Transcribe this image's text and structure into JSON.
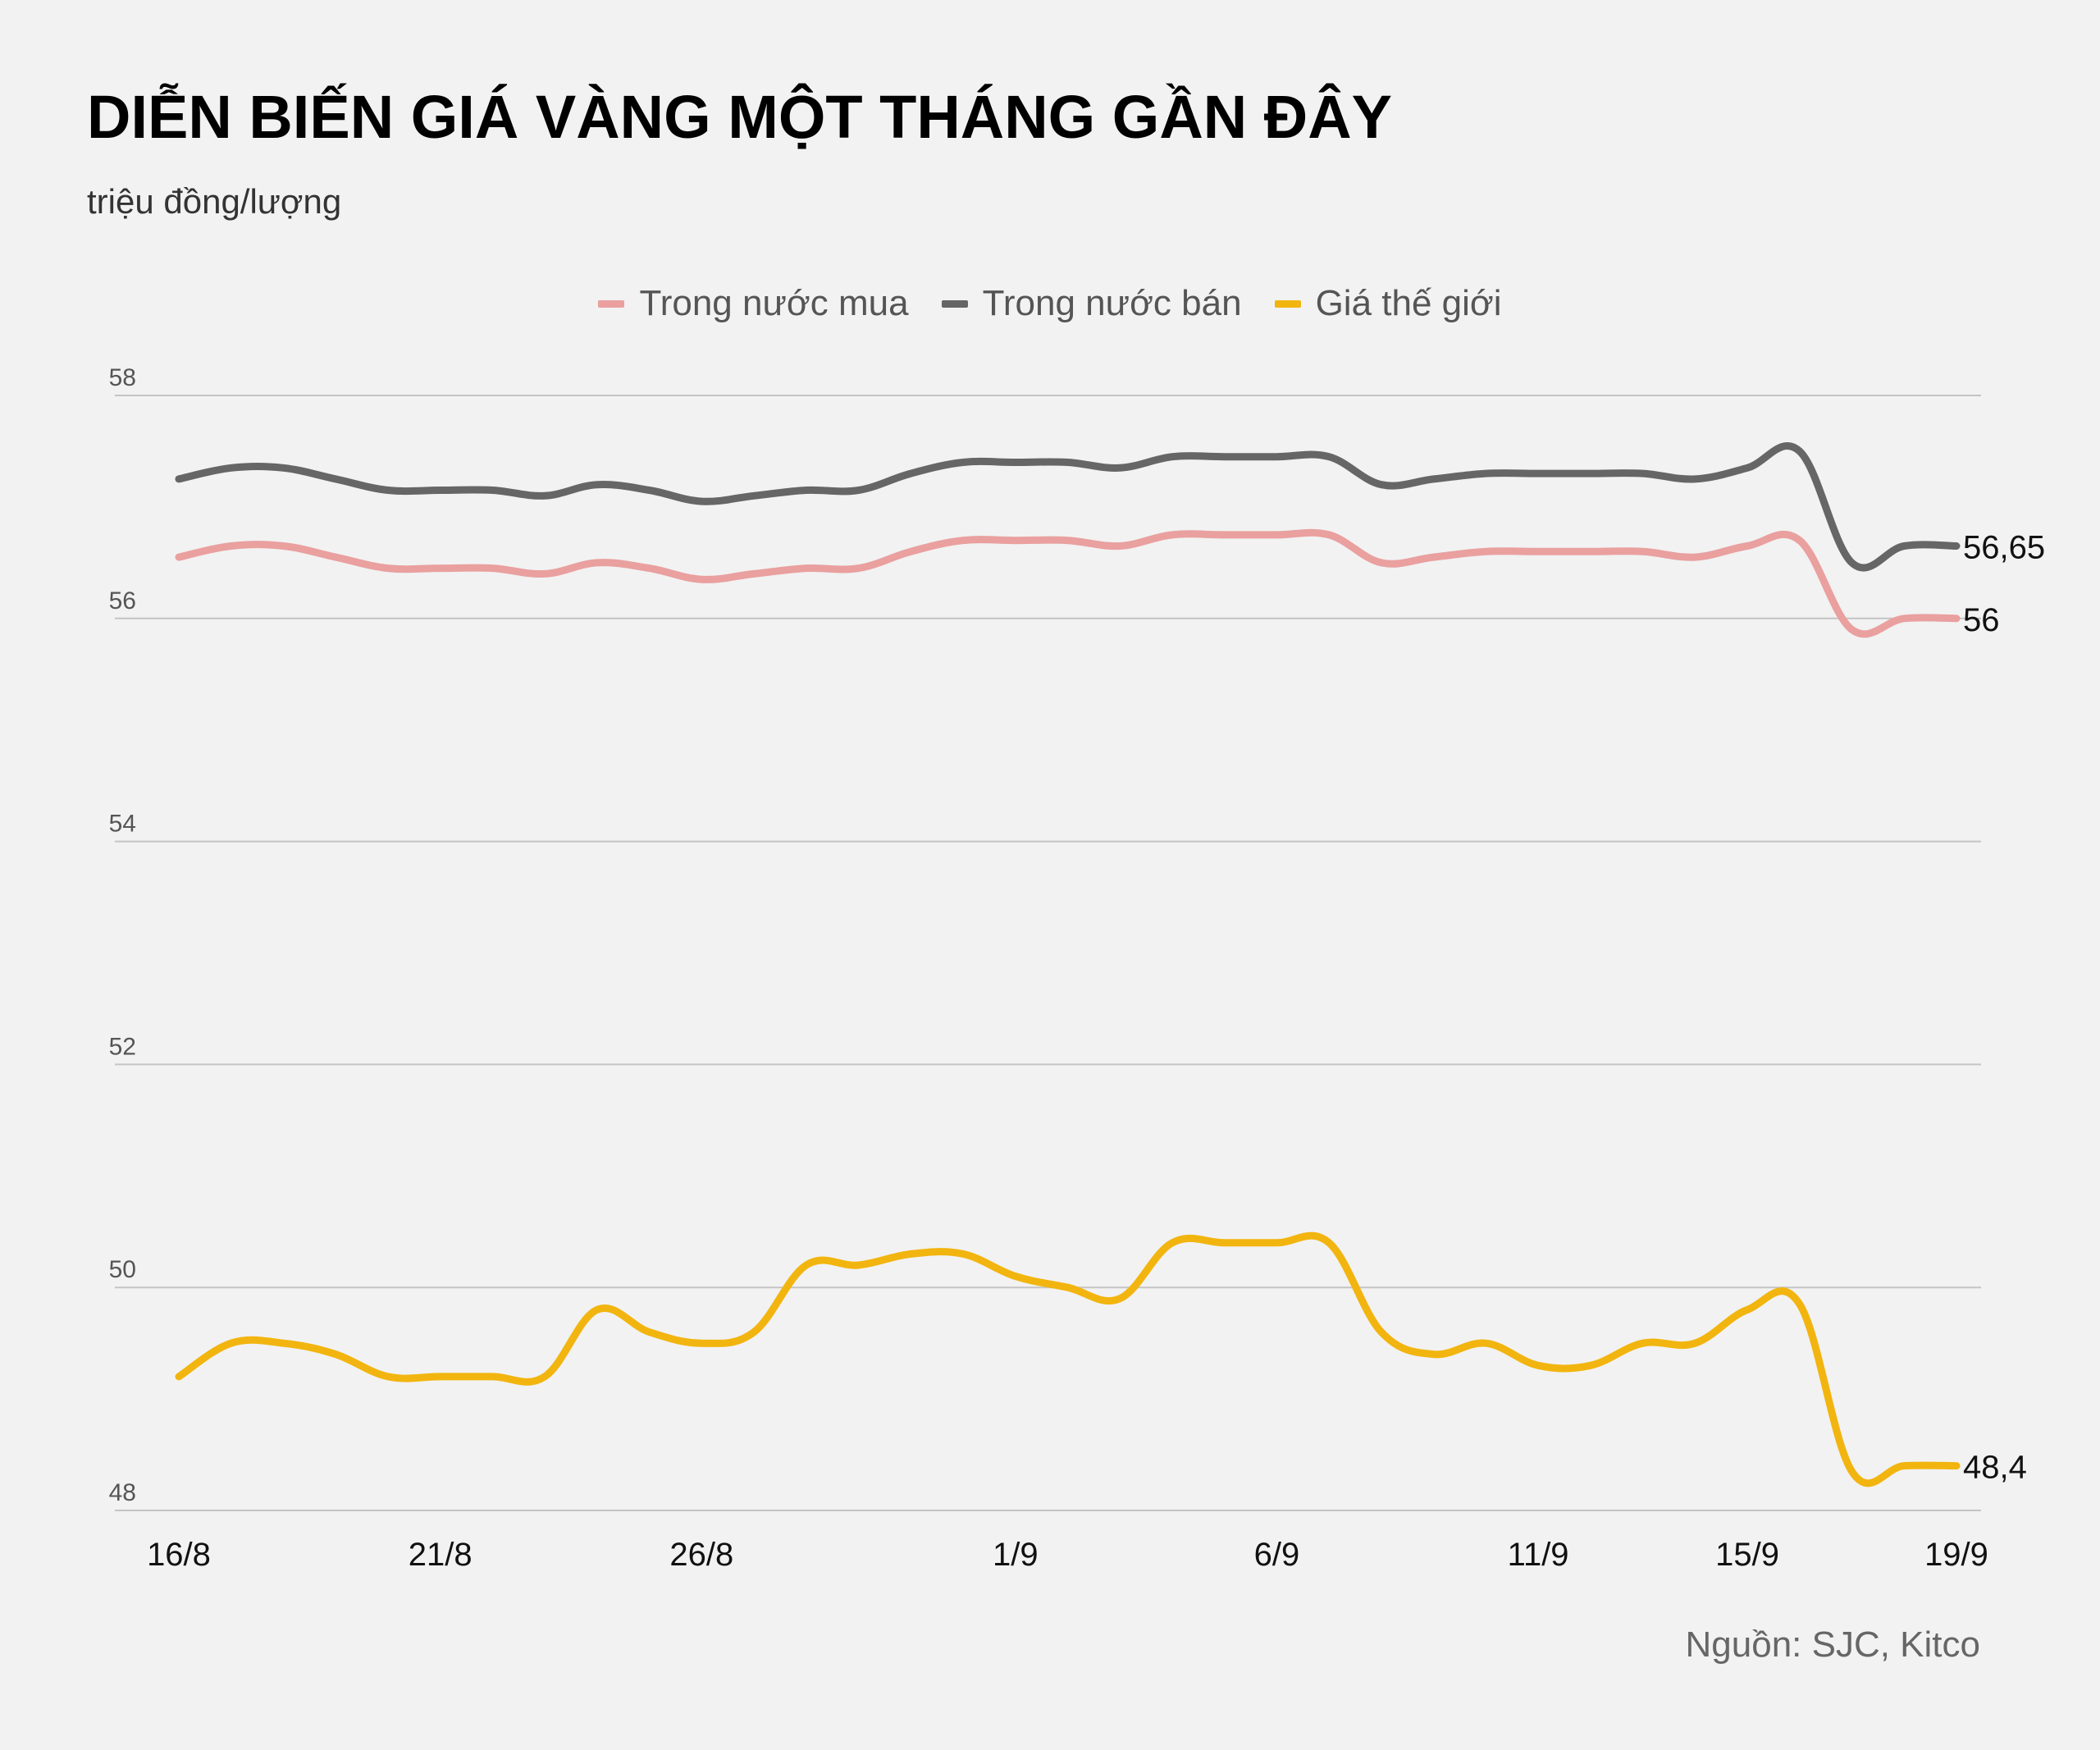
{
  "title": "DIỄN BIẾN GIÁ VÀNG MỘT THÁNG GẦN ĐÂY",
  "subtitle": "triệu đồng/lượng",
  "source": "Nguồn: SJC, Kitco",
  "chart_data": {
    "type": "line",
    "ylim": [
      48,
      58
    ],
    "yticks": [
      "48",
      "50",
      "52",
      "54",
      "56",
      "58"
    ],
    "grid": true,
    "legend_position": "top-center",
    "x": [
      "16/8",
      "17/8",
      "18/8",
      "19/8",
      "20/8",
      "21/8",
      "22/8",
      "23/8",
      "24/8",
      "25/8",
      "26/8",
      "27/8",
      "28/8",
      "29/8",
      "30/8",
      "31/8",
      "1/9",
      "2/9",
      "3/9",
      "4/9",
      "5/9",
      "6/9",
      "7/9",
      "8/9",
      "9/9",
      "10/9",
      "11/9",
      "12/9",
      "13/9",
      "14/9",
      "15/9",
      "16/9",
      "17/9",
      "18/9",
      "19/9"
    ],
    "xtick_labels": [
      "16/8",
      "21/8",
      "26/8",
      "1/9",
      "6/9",
      "11/9",
      "15/9",
      "19/9"
    ],
    "series": [
      {
        "name": "Trong nước mua",
        "color": "#e9a09f",
        "end_label": "56",
        "values": [
          56.55,
          56.65,
          56.65,
          56.55,
          56.45,
          56.45,
          56.45,
          56.4,
          56.5,
          56.45,
          56.35,
          56.4,
          56.45,
          56.45,
          56.6,
          56.7,
          56.7,
          56.7,
          56.65,
          56.75,
          56.75,
          56.75,
          56.75,
          56.5,
          56.55,
          56.6,
          56.6,
          56.6,
          56.6,
          56.55,
          56.65,
          56.7,
          55.9,
          56.0,
          56.0
        ]
      },
      {
        "name": "Trong nước bán",
        "color": "#666666",
        "end_label": "56,65",
        "values": [
          57.25,
          57.35,
          57.35,
          57.25,
          57.15,
          57.15,
          57.15,
          57.1,
          57.2,
          57.15,
          57.05,
          57.1,
          57.15,
          57.15,
          57.3,
          57.4,
          57.4,
          57.4,
          57.35,
          57.45,
          57.45,
          57.45,
          57.45,
          57.2,
          57.25,
          57.3,
          57.3,
          57.3,
          57.3,
          57.25,
          57.35,
          57.5,
          56.5,
          56.65,
          56.65
        ]
      },
      {
        "name": "Giá thế giới",
        "color": "#f2b50f",
        "end_label": "48,4",
        "values": [
          49.2,
          49.5,
          49.5,
          49.4,
          49.2,
          49.2,
          49.2,
          49.2,
          49.8,
          49.6,
          49.5,
          49.6,
          50.2,
          50.2,
          50.3,
          50.3,
          50.1,
          50.0,
          49.9,
          50.4,
          50.4,
          50.4,
          50.4,
          49.6,
          49.4,
          49.5,
          49.3,
          49.3,
          49.5,
          49.5,
          49.8,
          49.85,
          48.35,
          48.4,
          48.4
        ]
      }
    ]
  }
}
